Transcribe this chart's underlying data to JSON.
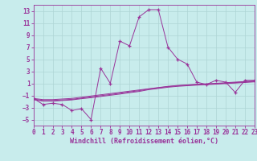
{
  "x": [
    0,
    1,
    2,
    3,
    4,
    5,
    6,
    7,
    8,
    9,
    10,
    11,
    12,
    13,
    14,
    15,
    16,
    17,
    18,
    19,
    20,
    21,
    22,
    23
  ],
  "y_main": [
    -1.5,
    -2.5,
    -2.3,
    -2.5,
    -3.5,
    -3.2,
    -5.0,
    3.5,
    1.0,
    8.0,
    7.2,
    12.0,
    13.2,
    13.2,
    7.0,
    5.0,
    4.2,
    1.2,
    0.8,
    1.5,
    1.2,
    -0.5,
    1.5,
    1.5
  ],
  "y_line1": [
    -1.5,
    -1.7,
    -1.7,
    -1.6,
    -1.5,
    -1.3,
    -1.1,
    -0.9,
    -0.7,
    -0.5,
    -0.3,
    -0.1,
    0.1,
    0.3,
    0.5,
    0.65,
    0.75,
    0.85,
    0.92,
    1.0,
    1.1,
    1.2,
    1.3,
    1.4
  ],
  "y_line2": [
    -1.6,
    -1.85,
    -1.85,
    -1.75,
    -1.65,
    -1.45,
    -1.25,
    -1.05,
    -0.85,
    -0.65,
    -0.43,
    -0.22,
    0.05,
    0.25,
    0.45,
    0.58,
    0.68,
    0.78,
    0.86,
    0.94,
    1.04,
    1.12,
    1.22,
    1.32
  ],
  "y_line3": [
    -1.7,
    -1.95,
    -1.95,
    -1.85,
    -1.75,
    -1.55,
    -1.38,
    -1.18,
    -0.98,
    -0.78,
    -0.55,
    -0.35,
    -0.05,
    0.15,
    0.35,
    0.5,
    0.6,
    0.7,
    0.78,
    0.86,
    0.96,
    1.04,
    1.14,
    1.24
  ],
  "line_color": "#993399",
  "bg_color": "#c8ecec",
  "grid_color": "#aed4d4",
  "xlabel": "Windchill (Refroidissement éolien,°C)",
  "ylim": [
    -6,
    14
  ],
  "xlim": [
    0,
    23
  ],
  "yticks": [
    -5,
    -3,
    -1,
    1,
    3,
    5,
    7,
    9,
    11,
    13
  ],
  "xticks": [
    0,
    1,
    2,
    3,
    4,
    5,
    6,
    7,
    8,
    9,
    10,
    11,
    12,
    13,
    14,
    15,
    16,
    17,
    18,
    19,
    20,
    21,
    22,
    23
  ],
  "tick_fontsize": 5.5,
  "xlabel_fontsize": 6.0
}
